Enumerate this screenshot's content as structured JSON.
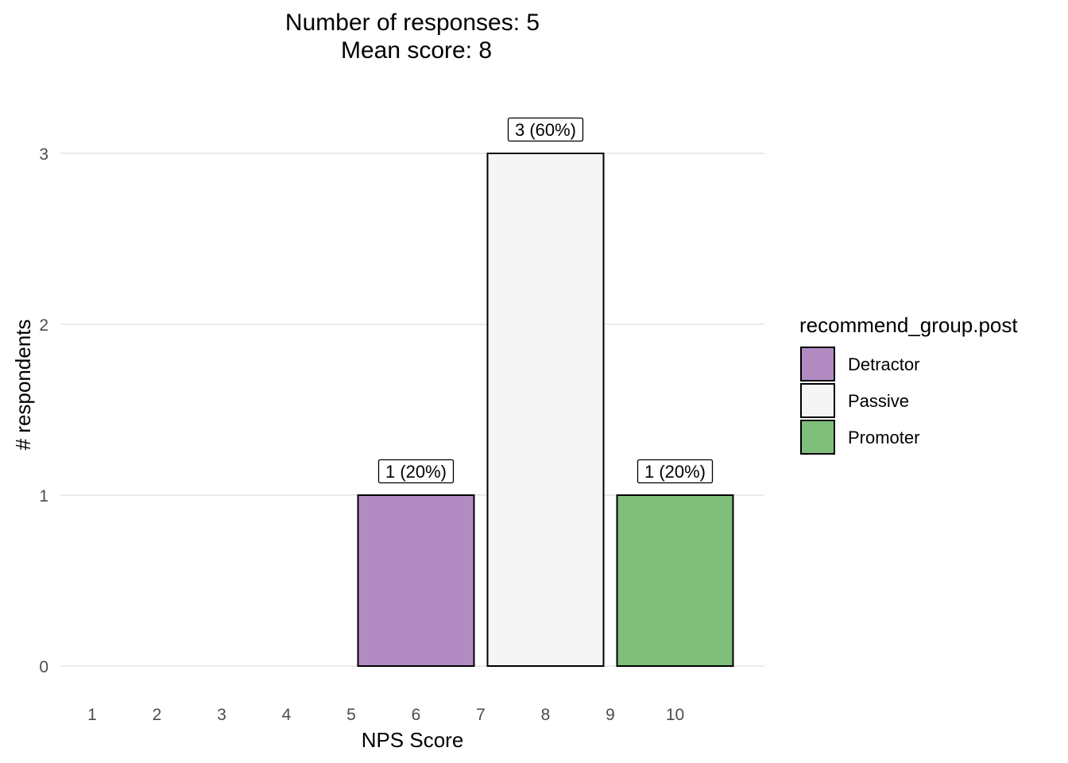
{
  "chart_data": {
    "type": "bar",
    "title_lines": [
      "Number of responses: 5",
      "Mean score: 8"
    ],
    "xlabel": "NPS Score",
    "ylabel": "# respondents",
    "x_ticks": [
      "1",
      "2",
      "3",
      "4",
      "5",
      "6",
      "7",
      "8",
      "9",
      "10"
    ],
    "y_ticks": [
      "0",
      "1",
      "2",
      "3"
    ],
    "ylim": [
      0,
      3.25
    ],
    "grid": "horizontal",
    "legend": {
      "title": "recommend_group.post",
      "position": "right",
      "items": [
        {
          "label": "Detractor",
          "color": "#b28bc2"
        },
        {
          "label": "Passive",
          "color": "#f5f5f5"
        },
        {
          "label": "Promoter",
          "color": "#7fbe7b"
        }
      ]
    },
    "bars": [
      {
        "x_center": 6,
        "value": 1,
        "group": "Detractor",
        "label": "1 (20%)",
        "color": "#b28bc2"
      },
      {
        "x_center": 8,
        "value": 3,
        "group": "Passive",
        "label": "3 (60%)",
        "color": "#f5f5f5"
      },
      {
        "x_center": 10,
        "value": 1,
        "group": "Promoter",
        "label": "1 (20%)",
        "color": "#7fbe7b"
      }
    ]
  }
}
